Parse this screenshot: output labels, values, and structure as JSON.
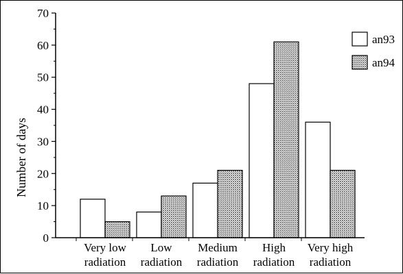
{
  "chart_data": {
    "type": "bar",
    "categories": [
      [
        "Very low",
        "radiation"
      ],
      [
        "Low",
        "radiation"
      ],
      [
        "Medium",
        "radiation"
      ],
      [
        "High",
        "radiation"
      ],
      [
        "Very high",
        "radiation"
      ]
    ],
    "series": [
      {
        "name": "an93",
        "values": [
          12,
          8,
          17,
          48,
          36
        ],
        "fill": "#ffffff",
        "pattern": "none"
      },
      {
        "name": "an94",
        "values": [
          5,
          13,
          21,
          61,
          21
        ],
        "fill": "#bbbbbb",
        "pattern": "dotted-hatch"
      }
    ],
    "title": "",
    "xlabel": "",
    "ylabel": "Number of days",
    "ylim": [
      0,
      70
    ],
    "yticks": [
      0,
      10,
      20,
      30,
      40,
      50,
      60,
      70
    ],
    "grid": false,
    "legend_position": "top-right"
  }
}
